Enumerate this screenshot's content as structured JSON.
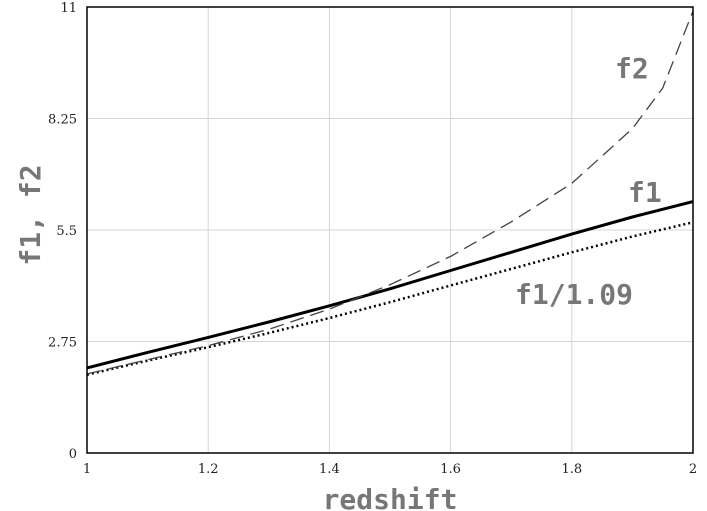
{
  "chart_data": {
    "type": "line",
    "xlabel": "redshift",
    "ylabel": "f1, f2",
    "xlim": [
      1,
      2
    ],
    "ylim": [
      0,
      11
    ],
    "x_ticks": [
      "1",
      "1.2",
      "1.4",
      "1.6",
      "1.8",
      "2"
    ],
    "y_ticks": [
      "0",
      "2.75",
      "5.5",
      "8.25",
      "11"
    ],
    "grid": true,
    "series": [
      {
        "name": "f1",
        "style": "solid",
        "color": "#000000",
        "x": [
          1.0,
          1.1,
          1.2,
          1.3,
          1.4,
          1.5,
          1.6,
          1.7,
          1.8,
          1.9,
          2.0
        ],
        "y": [
          2.1,
          2.48,
          2.85,
          3.23,
          3.63,
          4.05,
          4.5,
          4.95,
          5.4,
          5.82,
          6.2
        ]
      },
      {
        "name": "f1/1.09",
        "style": "dotted",
        "color": "#000000",
        "x": [
          1.0,
          1.1,
          1.2,
          1.3,
          1.4,
          1.5,
          1.6,
          1.7,
          1.8,
          1.9,
          2.0
        ],
        "y": [
          1.93,
          2.28,
          2.61,
          2.96,
          3.33,
          3.72,
          4.13,
          4.54,
          4.95,
          5.34,
          5.69
        ]
      },
      {
        "name": "f2",
        "style": "dashed",
        "color": "#444444",
        "x": [
          1.0,
          1.1,
          1.2,
          1.3,
          1.4,
          1.5,
          1.6,
          1.7,
          1.8,
          1.9,
          1.95,
          2.0
        ],
        "y": [
          1.95,
          2.3,
          2.65,
          3.05,
          3.55,
          4.15,
          4.85,
          5.7,
          6.65,
          8.0,
          9.0,
          10.9
        ]
      }
    ]
  }
}
